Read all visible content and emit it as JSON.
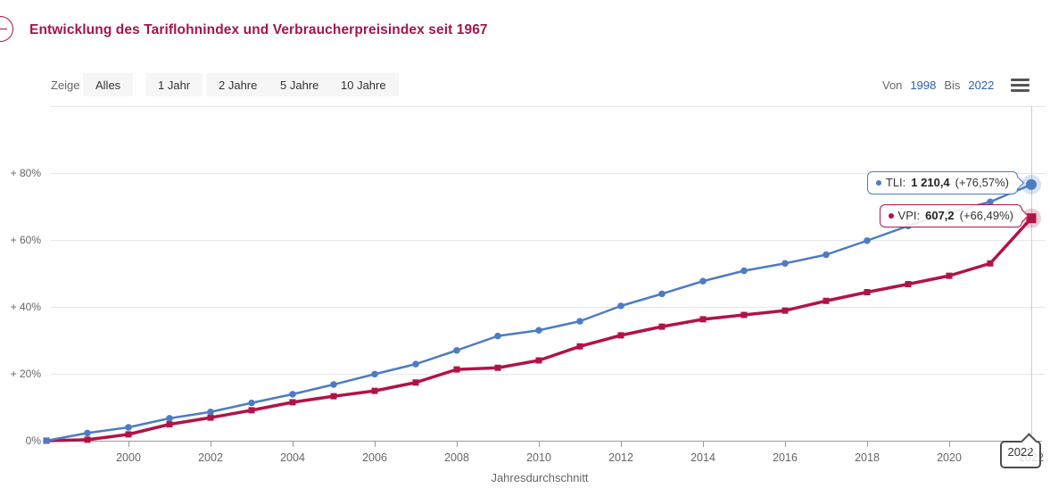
{
  "header": {
    "title": "Entwicklung des Tariflohnindex und Verbraucherpreisindex seit 1967",
    "accent_color": "#a3154d"
  },
  "toolbar": {
    "zeige_label": "Zeige",
    "range_buttons": [
      "Alles",
      "1 Jahr",
      "2 Jahre",
      "5 Jahre",
      "10 Jahre"
    ],
    "von_label": "Von",
    "von_value": "1998",
    "bis_label": "Bis",
    "bis_value": "2022",
    "menu_icon": "hamburger-menu-icon",
    "link_color": "#2e5fa5"
  },
  "tooltips": {
    "tli": {
      "series_label": "TLI:",
      "value": "1 210,4",
      "change": "(+76,57%)",
      "color": "#4d7cc1"
    },
    "vpi": {
      "series_label": "VPI:",
      "value": "607,2",
      "change": "(+66,49%)",
      "color": "#b11349"
    }
  },
  "chart_data": {
    "type": "line",
    "title": "Entwicklung des Tariflohnindex und Verbraucherpreisindex seit 1967",
    "xlabel": "Jahresdurchschnitt",
    "x": [
      1998,
      1999,
      2000,
      2001,
      2002,
      2003,
      2004,
      2005,
      2006,
      2007,
      2008,
      2009,
      2010,
      2011,
      2012,
      2013,
      2014,
      2015,
      2016,
      2017,
      2018,
      2019,
      2020,
      2021,
      2022
    ],
    "series": [
      {
        "name": "TLI",
        "color": "#4d7cc1",
        "marker": "circle",
        "values": [
          0,
          2.3,
          4.0,
          6.7,
          8.6,
          11.3,
          13.9,
          16.8,
          19.9,
          22.9,
          27.0,
          31.3,
          33.0,
          35.7,
          40.3,
          43.9,
          47.7,
          50.8,
          53.0,
          55.6,
          59.8,
          64.2,
          68.2,
          71.4,
          76.57
        ],
        "last_index_value": "1 210,4",
        "last_change": "+76,57%"
      },
      {
        "name": "VPI",
        "color": "#b11349",
        "marker": "square",
        "values": [
          0,
          0.3,
          1.9,
          4.9,
          6.9,
          9.1,
          11.5,
          13.3,
          14.9,
          17.4,
          21.3,
          21.8,
          24.0,
          28.2,
          31.5,
          34.1,
          36.3,
          37.6,
          38.9,
          41.8,
          44.4,
          46.8,
          49.3,
          53.0,
          66.49
        ],
        "last_index_value": "607,2",
        "last_change": "+66,49%"
      }
    ],
    "ylim": [
      0,
      100
    ],
    "yticks": [
      0,
      20,
      40,
      60,
      80
    ],
    "ytick_labels": [
      "0%",
      "+ 20%",
      "+ 40%",
      "+ 60%",
      "+ 80%"
    ],
    "xticks": [
      2000,
      2002,
      2004,
      2006,
      2008,
      2010,
      2012,
      2014,
      2016,
      2018,
      2020,
      2022
    ],
    "grid": "horizontal",
    "legend": "none",
    "crosshair_x": 2022,
    "crosshair_label": "2022",
    "value_unit": "percent change vs 1998"
  }
}
